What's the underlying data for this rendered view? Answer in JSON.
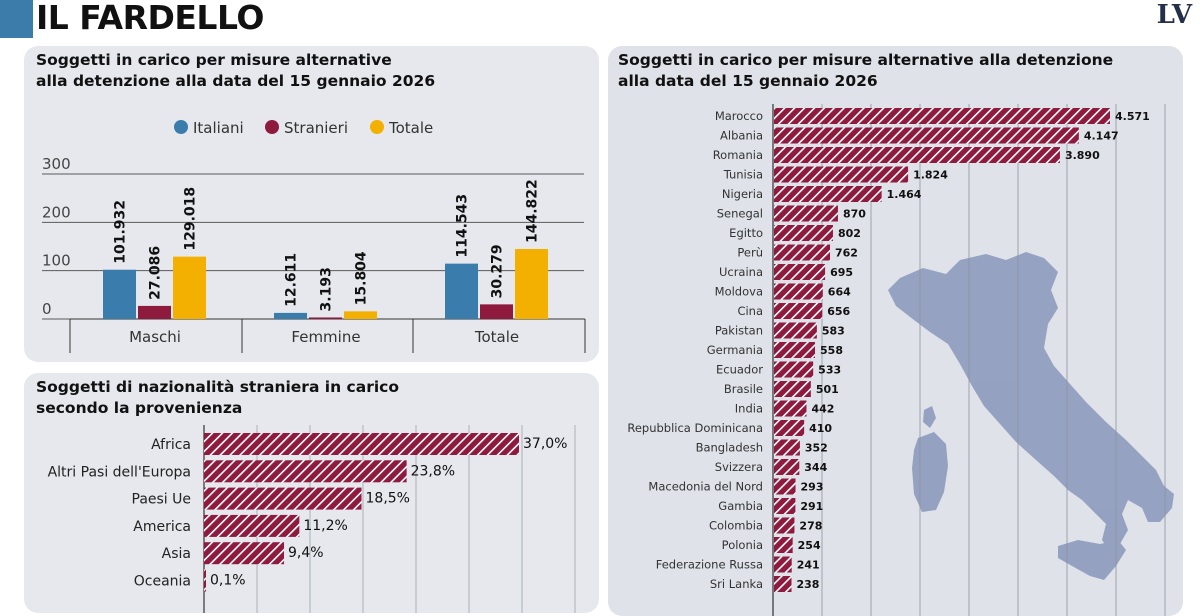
{
  "header": {
    "title": "IL FARDELLO",
    "logo": "LV",
    "accent_color": "#3c7cab"
  },
  "colors": {
    "italiani": "#3a7dad",
    "stranieri": "#8e1a3e",
    "totale": "#f3b000",
    "hatch_bar": "#8e1a3e"
  },
  "chart_data": [
    {
      "type": "bar",
      "title": "Soggetti in carico per misure alternative alla detenzione alla data del 15 gennaio 2026",
      "title_lines": [
        "Soggetti in carico per misure alternative",
        "alla detenzione alla data del 15 gennaio 2026"
      ],
      "categories": [
        "Maschi",
        "Femmine",
        "Totale"
      ],
      "series": [
        {
          "name": "Italiani",
          "values": [
            101932,
            12611,
            114543
          ],
          "labels": [
            "101.932",
            "12.611",
            "114.543"
          ]
        },
        {
          "name": "Stranieri",
          "values": [
            27086,
            3193,
            30279
          ],
          "labels": [
            "27.086",
            "3.193",
            "30.279"
          ]
        },
        {
          "name": "Totale",
          "values": [
            129018,
            15804,
            144822
          ],
          "labels": [
            "129.018",
            "15.804",
            "144.822"
          ]
        }
      ],
      "yticks": [
        "300",
        "200",
        "100",
        "0"
      ],
      "ylim": [
        0,
        300
      ],
      "legend": "top-center",
      "grid": true
    },
    {
      "type": "bar",
      "orientation": "horizontal",
      "title": "Soggetti di nazionalità straniera in carico secondo la provenienza",
      "title_lines": [
        "Soggetti di nazionalità straniera in carico",
        "secondo la provenienza"
      ],
      "categories": [
        "Africa",
        "Altri Pasi dell'Europa",
        "Paesi Ue",
        "America",
        "Asia",
        "Oceania"
      ],
      "values": [
        37.0,
        23.8,
        18.5,
        11.2,
        9.4,
        0.1
      ],
      "labels": [
        "37,0%",
        "23,8%",
        "18,5%",
        "11,2%",
        "9,4%",
        "0,1%"
      ],
      "grid": true
    },
    {
      "type": "bar",
      "orientation": "horizontal",
      "title": "Soggetti in carico per misure alternative alla detenzione alla data del 15 gennaio 2026",
      "title_lines": [
        "Soggetti in carico per misure alternative alla detenzione",
        "alla data del 15 gennaio 2026"
      ],
      "categories": [
        "Marocco",
        "Albania",
        "Romania",
        "Tunisia",
        "Nigeria",
        "Senegal",
        "Egitto",
        "Perù",
        "Ucraina",
        "Moldova",
        "Cina",
        "Pakistan",
        "Germania",
        "Ecuador",
        "Brasile",
        "India",
        "Repubblica Dominicana",
        "Bangladesh",
        "Svizzera",
        "Macedonia del Nord",
        "Gambia",
        "Colombia",
        "Polonia",
        "Federazione Russa",
        "Sri Lanka"
      ],
      "values": [
        4571,
        4147,
        3890,
        1824,
        1464,
        870,
        802,
        762,
        695,
        664,
        656,
        583,
        558,
        533,
        501,
        442,
        410,
        352,
        344,
        293,
        291,
        278,
        254,
        241,
        238
      ],
      "labels": [
        "4.571",
        "4.147",
        "3.890",
        "1.824",
        "1.464",
        "870",
        "802",
        "762",
        "695",
        "664",
        "656",
        "583",
        "558",
        "533",
        "501",
        "442",
        "410",
        "352",
        "344",
        "293",
        "291",
        "278",
        "254",
        "241",
        "238"
      ],
      "grid": true,
      "background_map": "italy-map"
    }
  ]
}
